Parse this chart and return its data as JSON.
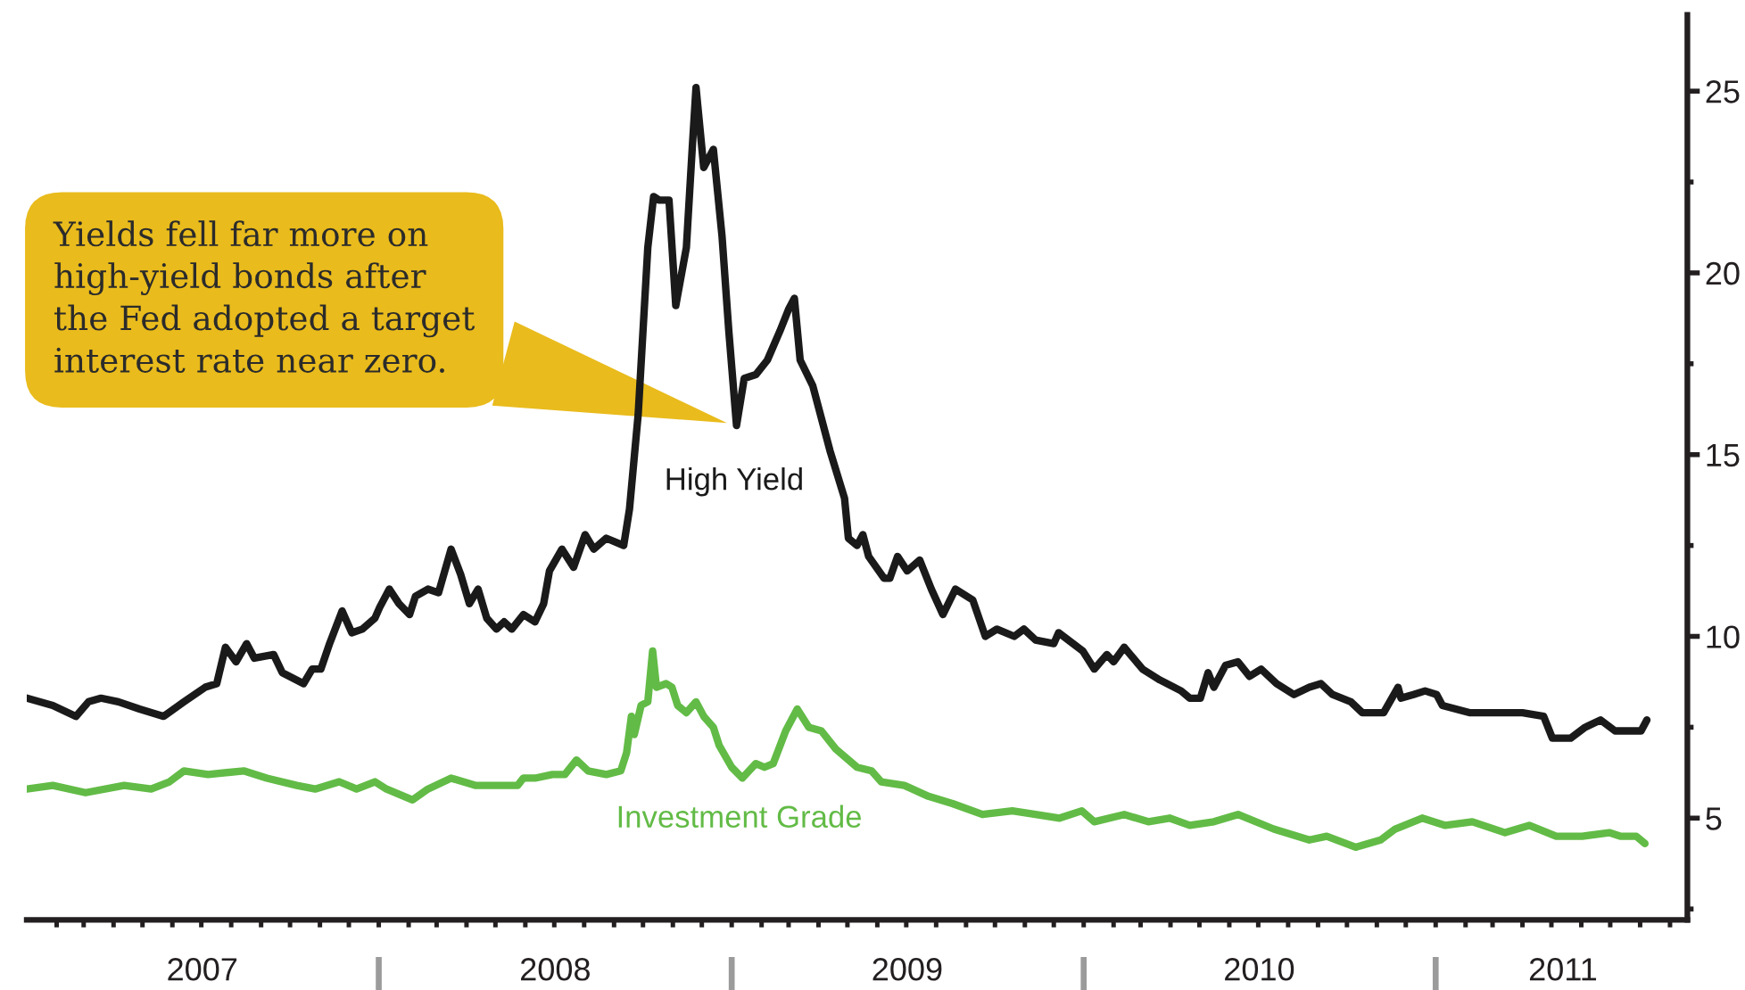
{
  "chart_data": {
    "type": "line",
    "annotations": [
      {
        "text": "Yields fell far more on\nhigh-yield bonds after\nthe Fed adopted a target\ninterest rate near zero.",
        "x": "2009-01-06",
        "y": 15.8
      }
    ],
    "xlim": [
      "2007-01-01",
      "2011-09-19"
    ],
    "xticks": [
      {
        "value": "2007-07-02",
        "label": "2007"
      },
      {
        "value": "2008-07-02",
        "label": "2008"
      },
      {
        "value": "2009-07-02",
        "label": "2009"
      },
      {
        "value": "2010-07-02",
        "label": "2010"
      },
      {
        "value": "2011-05-13",
        "label": "2011"
      },
      {
        "value": "2007-02",
        "label": null
      },
      {
        "value": "2007-03",
        "label": null
      },
      {
        "value": "2007-04",
        "label": null
      },
      {
        "value": "2007-05",
        "label": null
      },
      {
        "value": "2007-06",
        "label": null
      },
      {
        "value": "2007-07",
        "label": null
      },
      {
        "value": "2007-08",
        "label": null
      },
      {
        "value": "2007-09",
        "label": null
      },
      {
        "value": "2007-10",
        "label": null
      },
      {
        "value": "2007-11",
        "label": null
      },
      {
        "value": "2007-12",
        "label": null
      },
      {
        "value": "2008-01",
        "label": null
      },
      {
        "value": "2008-02",
        "label": null
      },
      {
        "value": "2008-03",
        "label": null
      },
      {
        "value": "2008-04",
        "label": null
      },
      {
        "value": "2008-05",
        "label": null
      },
      {
        "value": "2008-06",
        "label": null
      },
      {
        "value": "2008-07",
        "label": null
      },
      {
        "value": "2008-08",
        "label": null
      },
      {
        "value": "2008-09",
        "label": null
      },
      {
        "value": "2008-10",
        "label": null
      },
      {
        "value": "2008-11",
        "label": null
      },
      {
        "value": "2008-12",
        "label": null
      },
      {
        "value": "2009-01",
        "label": null
      },
      {
        "value": "2009-02",
        "label": null
      },
      {
        "value": "2009-03",
        "label": null
      },
      {
        "value": "2009-04",
        "label": null
      },
      {
        "value": "2009-05",
        "label": null
      },
      {
        "value": "2009-06",
        "label": null
      },
      {
        "value": "2009-07",
        "label": null
      },
      {
        "value": "2009-08",
        "label": null
      },
      {
        "value": "2009-09",
        "label": null
      },
      {
        "value": "2009-10",
        "label": null
      },
      {
        "value": "2009-11",
        "label": null
      },
      {
        "value": "2009-12",
        "label": null
      },
      {
        "value": "2010-01",
        "label": null
      },
      {
        "value": "2010-02",
        "label": null
      },
      {
        "value": "2010-03",
        "label": null
      },
      {
        "value": "2010-04",
        "label": null
      },
      {
        "value": "2010-05",
        "label": null
      },
      {
        "value": "2010-06",
        "label": null
      },
      {
        "value": "2010-07",
        "label": null
      },
      {
        "value": "2010-08",
        "label": null
      },
      {
        "value": "2010-09",
        "label": null
      },
      {
        "value": "2010-10",
        "label": null
      },
      {
        "value": "2010-11",
        "label": null
      },
      {
        "value": "2010-12",
        "label": null
      },
      {
        "value": "2011-01",
        "label": null
      },
      {
        "value": "2011-02",
        "label": null
      },
      {
        "value": "2011-03",
        "label": null
      },
      {
        "value": "2011-04",
        "label": null
      },
      {
        "value": "2011-05",
        "label": null
      },
      {
        "value": "2011-06",
        "label": null
      },
      {
        "value": "2011-07",
        "label": null
      },
      {
        "value": "2011-08",
        "label": null
      },
      {
        "value": "2011-09",
        "label": null
      }
    ],
    "ylim": [
      2.2,
      27.1
    ],
    "yticks": [
      {
        "value": 2.5,
        "label": null
      },
      5,
      {
        "value": 7.5,
        "label": null
      },
      10,
      {
        "value": 12.5,
        "label": null
      },
      15,
      {
        "value": 17.5,
        "label": null
      },
      20,
      {
        "value": 22.5,
        "label": null
      },
      25
    ],
    "series": [
      {
        "name": "High Yield",
        "color": "#1a1a1a",
        "x": [
          "2007-01-01",
          "2007-01-28",
          "2007-02-21",
          "2007-03-06",
          "2007-03-19",
          "2007-04-06",
          "2007-04-28",
          "2007-05-23",
          "2007-06-13",
          "2007-07-05",
          "2007-07-17",
          "2007-07-26",
          "2007-08-06",
          "2007-08-17",
          "2007-08-25",
          "2007-09-14",
          "2007-09-23",
          "2007-10-15",
          "2007-10-24",
          "2007-11-02",
          "2007-11-11",
          "2007-11-24",
          "2007-12-04",
          "2007-12-15",
          "2007-12-28",
          "2008-01-02",
          "2008-01-12",
          "2008-01-22",
          "2008-02-02",
          "2008-02-08",
          "2008-02-21",
          "2008-03-03",
          "2008-03-16",
          "2008-03-26",
          "2008-04-04",
          "2008-04-13",
          "2008-04-22",
          "2008-05-02",
          "2008-05-10",
          "2008-05-18",
          "2008-05-30",
          "2008-06-11",
          "2008-06-20",
          "2008-06-26",
          "2008-07-09",
          "2008-07-21",
          "2008-08-02",
          "2008-08-11",
          "2008-08-24",
          "2008-09-11",
          "2008-09-17",
          "2008-09-26",
          "2008-10-06",
          "2008-10-12",
          "2008-10-18",
          "2008-10-28",
          "2008-11-04",
          "2008-11-15",
          "2008-11-21",
          "2008-11-25",
          "2008-12-03",
          "2008-12-13",
          "2008-12-22",
          "2008-12-29",
          "2009-01-06",
          "2009-01-14",
          "2009-01-26",
          "2009-02-07",
          "2009-02-20",
          "2009-03-01",
          "2009-03-07",
          "2009-03-13",
          "2009-03-26",
          "2009-04-13",
          "2009-04-28",
          "2009-05-02",
          "2009-05-11",
          "2009-05-17",
          "2009-05-23",
          "2009-06-08",
          "2009-06-14",
          "2009-06-22",
          "2009-07-02",
          "2009-07-15",
          "2009-07-27",
          "2009-08-08",
          "2009-08-21",
          "2009-09-08",
          "2009-09-21",
          "2009-10-03",
          "2009-10-21",
          "2009-10-31",
          "2009-11-12",
          "2009-12-01",
          "2009-12-06",
          "2009-12-31",
          "2010-01-12",
          "2010-01-25",
          "2010-02-01",
          "2010-02-12",
          "2010-03-03",
          "2010-03-21",
          "2010-04-12",
          "2010-04-21",
          "2010-05-02",
          "2010-05-10",
          "2010-05-16",
          "2010-05-28",
          "2010-06-10",
          "2010-06-22",
          "2010-07-04",
          "2010-07-20",
          "2010-08-07",
          "2010-08-23",
          "2010-09-04",
          "2010-09-16",
          "2010-10-05",
          "2010-10-17",
          "2010-11-08",
          "2010-11-23",
          "2010-11-26",
          "2010-12-09",
          "2010-12-21",
          "2011-01-02",
          "2011-01-08",
          "2011-02-05",
          "2011-02-17",
          "2011-03-20",
          "2011-04-01",
          "2011-04-23",
          "2011-05-02",
          "2011-05-21",
          "2011-06-05",
          "2011-06-21",
          "2011-07-06",
          "2011-07-22",
          "2011-08-02",
          "2011-08-08"
        ],
        "values": [
          8.3,
          8.1,
          7.8,
          8.2,
          8.3,
          8.2,
          8.0,
          7.8,
          8.2,
          8.6,
          8.7,
          9.7,
          9.3,
          9.8,
          9.4,
          9.5,
          9.0,
          8.7,
          9.1,
          9.1,
          9.8,
          10.7,
          10.1,
          10.2,
          10.5,
          10.8,
          11.3,
          10.9,
          10.6,
          11.1,
          11.3,
          11.2,
          12.4,
          11.7,
          10.9,
          11.3,
          10.5,
          10.2,
          10.4,
          10.2,
          10.6,
          10.4,
          10.9,
          11.8,
          12.4,
          11.9,
          12.8,
          12.4,
          12.7,
          12.5,
          13.5,
          16.1,
          20.7,
          22.1,
          22.0,
          22.0,
          19.1,
          20.7,
          23.4,
          25.1,
          22.9,
          23.4,
          21.0,
          18.4,
          15.8,
          17.1,
          17.2,
          17.6,
          18.4,
          19.0,
          19.3,
          17.6,
          16.9,
          15.1,
          13.8,
          12.7,
          12.5,
          12.8,
          12.2,
          11.6,
          11.6,
          12.2,
          11.8,
          12.1,
          11.3,
          10.6,
          11.3,
          11.0,
          10.0,
          10.2,
          10.0,
          10.2,
          9.9,
          9.8,
          10.1,
          9.6,
          9.1,
          9.5,
          9.3,
          9.7,
          9.1,
          8.8,
          8.5,
          8.3,
          8.3,
          9.0,
          8.6,
          9.2,
          9.3,
          8.9,
          9.1,
          8.7,
          8.4,
          8.6,
          8.7,
          8.4,
          8.2,
          7.9,
          7.9,
          8.6,
          8.3,
          8.4,
          8.5,
          8.4,
          8.1,
          7.9,
          7.9,
          7.9,
          7.9,
          7.8,
          7.2,
          7.2,
          7.5,
          7.7,
          7.4,
          7.4,
          7.4,
          7.7
        ]
      },
      {
        "name": "Investment Grade",
        "color": "#62bb46",
        "x": [
          "2007-01-01",
          "2007-01-28",
          "2007-03-03",
          "2007-04-12",
          "2007-05-10",
          "2007-05-29",
          "2007-06-13",
          "2007-07-08",
          "2007-08-14",
          "2007-09-07",
          "2007-10-08",
          "2007-10-27",
          "2007-11-21",
          "2007-12-09",
          "2007-12-28",
          "2008-01-09",
          "2008-02-05",
          "2008-02-21",
          "2008-03-16",
          "2008-04-10",
          "2008-05-05",
          "2008-05-24",
          "2008-05-30",
          "2008-06-11",
          "2008-06-29",
          "2008-07-12",
          "2008-07-24",
          "2008-08-05",
          "2008-08-24",
          "2008-09-08",
          "2008-09-14",
          "2008-09-19",
          "2008-09-22",
          "2008-09-29",
          "2008-10-06",
          "2008-10-11",
          "2008-10-15",
          "2008-10-25",
          "2008-10-31",
          "2008-11-06",
          "2008-11-15",
          "2008-11-25",
          "2008-12-03",
          "2008-12-13",
          "2008-12-19",
          "2009-01-01",
          "2009-01-12",
          "2009-01-26",
          "2009-02-04",
          "2009-02-13",
          "2009-02-26",
          "2009-03-10",
          "2009-03-22",
          "2009-04-04",
          "2009-04-19",
          "2009-05-11",
          "2009-05-26",
          "2009-06-05",
          "2009-06-29",
          "2009-07-24",
          "2009-08-18",
          "2009-09-18",
          "2009-10-19",
          "2009-11-12",
          "2009-12-07",
          "2009-12-30",
          "2010-01-12",
          "2010-02-12",
          "2010-03-09",
          "2010-03-31",
          "2010-04-21",
          "2010-05-16",
          "2010-06-10",
          "2010-07-17",
          "2010-08-23",
          "2010-09-10",
          "2010-10-10",
          "2010-11-05",
          "2010-11-20",
          "2010-12-18",
          "2011-01-11",
          "2011-02-08",
          "2011-03-14",
          "2011-04-08",
          "2011-05-06",
          "2011-06-02",
          "2011-06-30",
          "2011-07-12",
          "2011-07-28",
          "2011-08-06"
        ],
        "values": [
          5.8,
          5.9,
          5.7,
          5.9,
          5.8,
          6.0,
          6.3,
          6.2,
          6.3,
          6.1,
          5.9,
          5.8,
          6.0,
          5.8,
          6.0,
          5.8,
          5.5,
          5.8,
          6.1,
          5.9,
          5.9,
          5.9,
          6.1,
          6.1,
          6.2,
          6.2,
          6.6,
          6.3,
          6.2,
          6.3,
          6.8,
          7.8,
          7.3,
          8.1,
          8.2,
          9.6,
          8.6,
          8.7,
          8.6,
          8.1,
          7.9,
          8.2,
          7.8,
          7.5,
          7.0,
          6.4,
          6.1,
          6.5,
          6.4,
          6.5,
          7.4,
          8.0,
          7.5,
          7.4,
          6.9,
          6.4,
          6.3,
          6.0,
          5.9,
          5.6,
          5.4,
          5.1,
          5.2,
          5.1,
          5.0,
          5.2,
          4.9,
          5.1,
          4.9,
          5.0,
          4.8,
          4.9,
          5.1,
          4.7,
          4.4,
          4.5,
          4.2,
          4.4,
          4.7,
          5.0,
          4.8,
          4.9,
          4.6,
          4.8,
          4.5,
          4.5,
          4.6,
          4.5,
          4.5,
          4.3
        ]
      }
    ]
  }
}
